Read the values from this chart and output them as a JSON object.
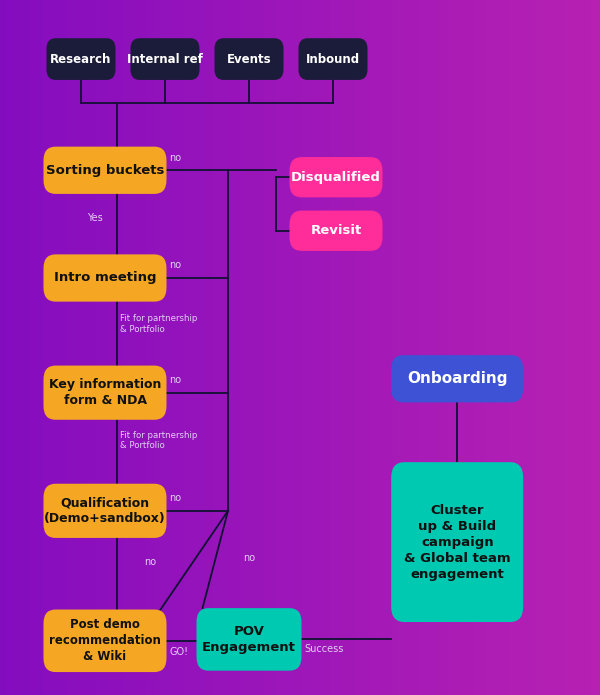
{
  "yellow_color": "#F5A623",
  "pink_color": "#FF2D9A",
  "teal_color": "#00C9B1",
  "blue_color": "#3D52D5",
  "dark_color": "#1B1B3A",
  "line_color": "#111133",
  "text_white": "#ffffff",
  "text_dark": "#111111",
  "top_labels": [
    "Research",
    "Internal ref",
    "Events",
    "Inbound"
  ]
}
